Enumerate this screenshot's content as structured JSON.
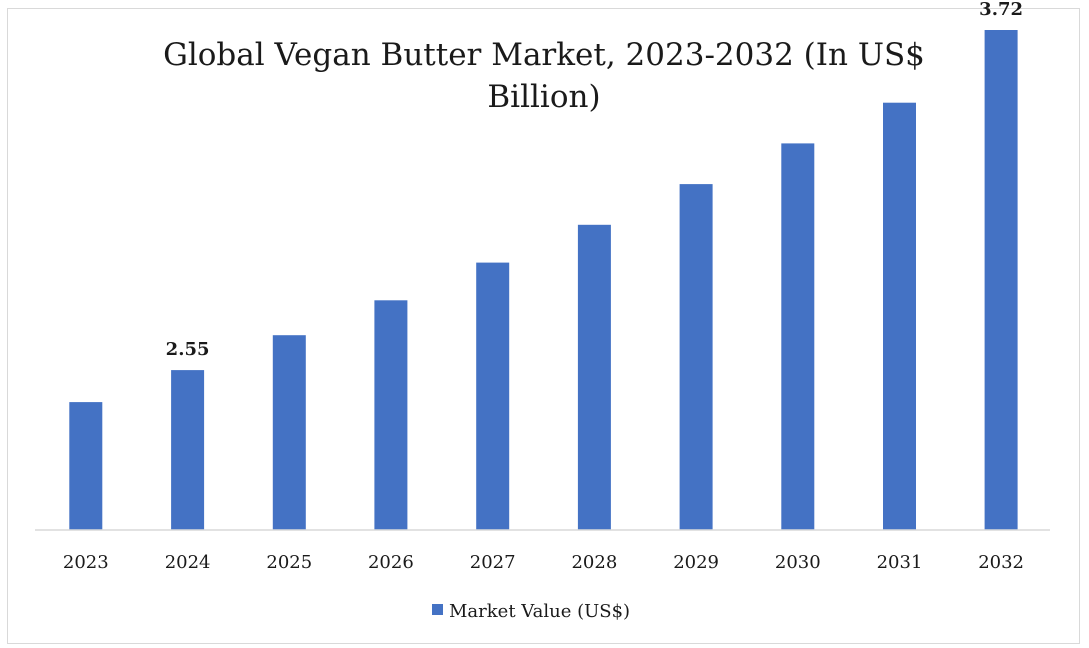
{
  "chart_data": {
    "type": "bar",
    "title_lines": [
      "Global Vegan Butter Market, 2023-2032 (In US$",
      "Billion)"
    ],
    "categories": [
      "2023",
      "2024",
      "2025",
      "2026",
      "2027",
      "2028",
      "2029",
      "2030",
      "2031",
      "2032"
    ],
    "series": [
      {
        "name": "Market Value (US$)",
        "values": [
          2.44,
          2.55,
          2.67,
          2.79,
          2.92,
          3.05,
          3.19,
          3.33,
          3.47,
          3.72
        ]
      }
    ],
    "data_labels": [
      {
        "category": "2024",
        "text": "2.55"
      },
      {
        "category": "2032",
        "text": "3.72"
      }
    ],
    "bar_color": "#4472c4",
    "axis_color": "#d9d9d9",
    "legend_position": "bottom-center",
    "grid": false,
    "y_axis_visible": false
  }
}
